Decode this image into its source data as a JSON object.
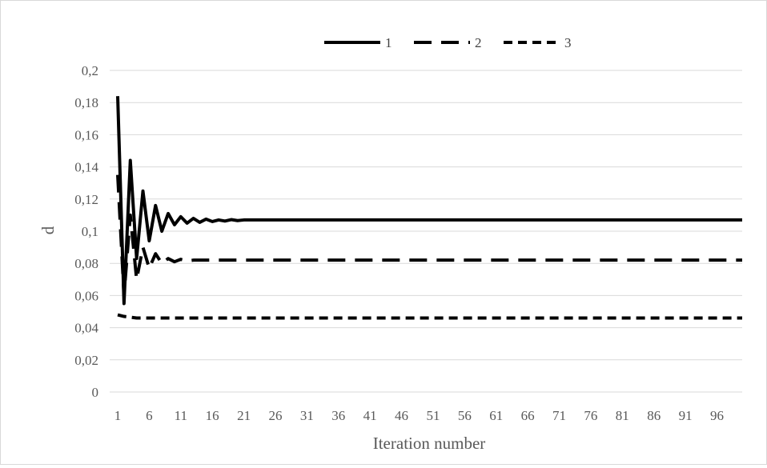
{
  "chart_data": {
    "type": "line",
    "title": "",
    "xlabel": "Iteration number",
    "ylabel": "d",
    "x_range": [
      1,
      100
    ],
    "xticks": [
      1,
      6,
      11,
      16,
      21,
      26,
      31,
      36,
      41,
      46,
      51,
      56,
      61,
      66,
      71,
      76,
      81,
      86,
      91,
      96
    ],
    "xtick_labels": [
      "1",
      "6",
      "11",
      "16",
      "21",
      "26",
      "31",
      "36",
      "41",
      "46",
      "51",
      "56",
      "61",
      "66",
      "71",
      "76",
      "81",
      "86",
      "91",
      "96"
    ],
    "ylim": [
      0,
      0.2
    ],
    "yticks": [
      0,
      0.02,
      0.04,
      0.06,
      0.08,
      0.1,
      0.12,
      0.14,
      0.16,
      0.18,
      0.2
    ],
    "ytick_labels": [
      "0",
      "0,02",
      "0,04",
      "0,06",
      "0,08",
      "0,1",
      "0,12",
      "0,14",
      "0,16",
      "0,18",
      "0,2"
    ],
    "grid": "horizontal",
    "legend_position": "top",
    "series": [
      {
        "name": "1",
        "line_style": "solid",
        "color": "#000000",
        "points": [
          [
            1,
            0.184
          ],
          [
            2,
            0.055
          ],
          [
            3,
            0.144
          ],
          [
            4,
            0.083
          ],
          [
            5,
            0.125
          ],
          [
            6,
            0.094
          ],
          [
            7,
            0.116
          ],
          [
            8,
            0.1
          ],
          [
            9,
            0.111
          ],
          [
            10,
            0.104
          ],
          [
            11,
            0.109
          ],
          [
            12,
            0.105
          ],
          [
            13,
            0.108
          ],
          [
            14,
            0.1055
          ],
          [
            15,
            0.1075
          ],
          [
            16,
            0.106
          ],
          [
            17,
            0.107
          ],
          [
            18,
            0.1063
          ],
          [
            19,
            0.1072
          ],
          [
            20,
            0.1066
          ],
          [
            21,
            0.107
          ],
          [
            100,
            0.107
          ]
        ]
      },
      {
        "name": "2",
        "line_style": "long-dash",
        "color": "#000000",
        "points": [
          [
            1,
            0.135
          ],
          [
            2,
            0.06
          ],
          [
            3,
            0.11
          ],
          [
            4,
            0.07
          ],
          [
            5,
            0.09
          ],
          [
            6,
            0.077
          ],
          [
            7,
            0.086
          ],
          [
            8,
            0.08
          ],
          [
            9,
            0.083
          ],
          [
            10,
            0.081
          ],
          [
            11,
            0.0825
          ],
          [
            12,
            0.0815
          ],
          [
            13,
            0.082
          ],
          [
            100,
            0.082
          ]
        ]
      },
      {
        "name": "3",
        "line_style": "short-dash",
        "color": "#000000",
        "points": [
          [
            1,
            0.048
          ],
          [
            2,
            0.047
          ],
          [
            3,
            0.0465
          ],
          [
            4,
            0.046
          ],
          [
            100,
            0.046
          ]
        ]
      }
    ]
  }
}
